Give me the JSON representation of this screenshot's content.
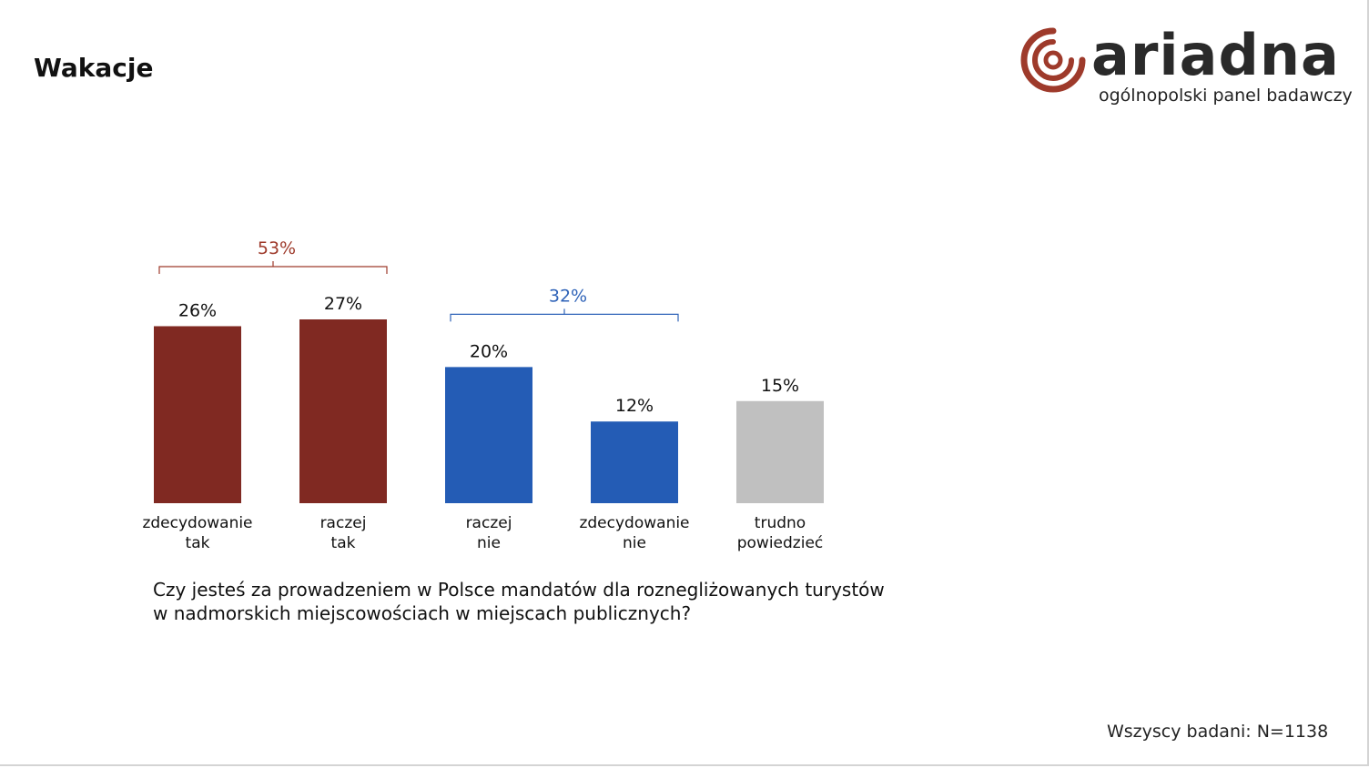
{
  "page": {
    "title": "Wakacje"
  },
  "brand": {
    "name": "ariadna",
    "tagline": "ogólnopolski panel badawczy",
    "accent": "#9e3a2b"
  },
  "question": {
    "line1": "Czy jesteś za prowadzeniem w Polsce mandatów dla roznegliżowanych turystów",
    "line2": "w nadmorskich miejscowościach w miejscach publicznych?"
  },
  "footer": {
    "sample_note": "Wszyscy badani: N=1138"
  },
  "chart_data": {
    "type": "bar",
    "categories": [
      [
        "zdecydowanie",
        "tak"
      ],
      [
        "raczej",
        "tak"
      ],
      [
        "raczej",
        "nie"
      ],
      [
        "zdecydowanie",
        "nie"
      ],
      [
        "trudno",
        "powiedzieć"
      ]
    ],
    "values": [
      26,
      27,
      20,
      12,
      15
    ],
    "value_labels": [
      "26%",
      "27%",
      "20%",
      "12%",
      "15%"
    ],
    "colors": [
      "#802922",
      "#802922",
      "#245cb5",
      "#245cb5",
      "#c0c0c0"
    ],
    "groups": [
      {
        "label": "53%",
        "value": 53,
        "from": 0,
        "to": 1,
        "color": "#9e3a2b"
      },
      {
        "label": "32%",
        "value": 32,
        "from": 2,
        "to": 3,
        "color": "#2f63b8"
      }
    ],
    "ylim": [
      0,
      27
    ],
    "grid": false,
    "legend": "none"
  }
}
